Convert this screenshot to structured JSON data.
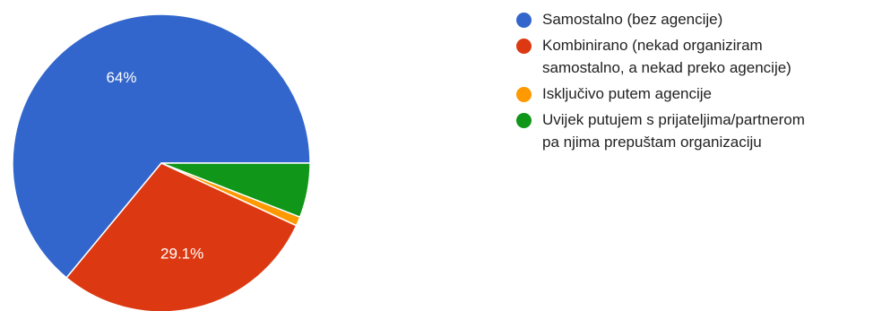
{
  "chart_data": {
    "type": "pie",
    "title": "",
    "legend_position": "right",
    "start_angle_deg": 0,
    "direction": "counterclockwise",
    "slices": [
      {
        "label": "Samostalno (bez agencije)",
        "value": 64.0,
        "color": "#3366cc",
        "data_label": "64%"
      },
      {
        "label": "Kombinirano (nekad organiziram\nsamostalno, a nekad preko agencije)",
        "value": 29.1,
        "color": "#dc3912",
        "data_label": "29.1%"
      },
      {
        "label": "Isključivo putem agencije",
        "value": 1.0,
        "color": "#ff9900",
        "data_label": ""
      },
      {
        "label": "Uvijek putujem s prijateljima/partnerom\npa njima prepuštam organizaciju",
        "value": 5.9,
        "color": "#109618",
        "data_label": ""
      }
    ]
  }
}
